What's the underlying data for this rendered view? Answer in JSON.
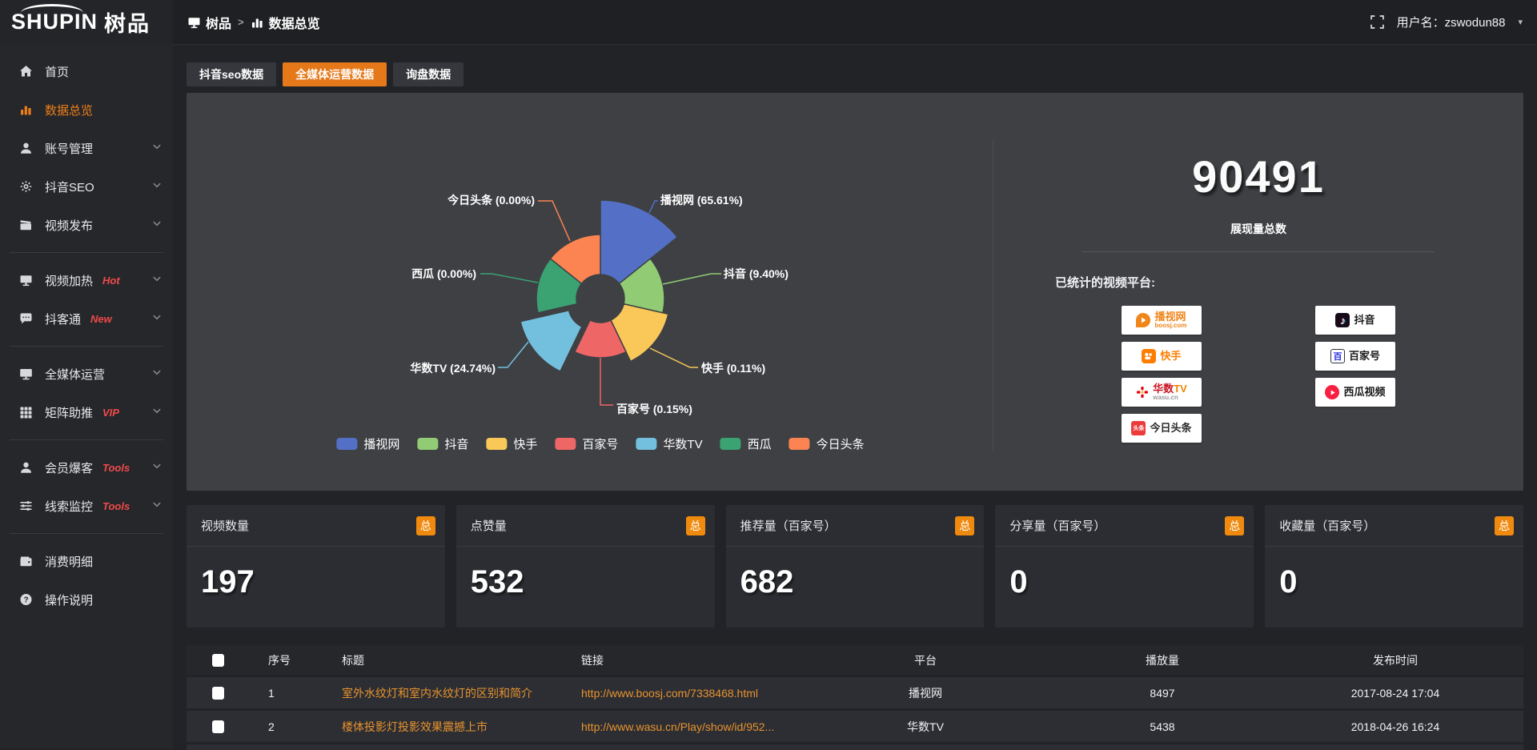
{
  "app": {
    "logo_en": "SHUPIN",
    "logo_cn": "树品"
  },
  "topbar": {
    "breadcrumb": [
      {
        "label": "树品",
        "icon": "screen-icon"
      },
      {
        "label": "数据总览",
        "icon": "bar-chart-icon"
      }
    ],
    "separator": ">",
    "username_label": "用户名：",
    "username": "zswodun88"
  },
  "sidebar": {
    "groups": [
      {
        "items": [
          {
            "icon": "home-icon",
            "label": "首页"
          },
          {
            "icon": "bar-chart-icon",
            "label": "数据总览",
            "active": true
          },
          {
            "icon": "user-icon",
            "label": "账号管理",
            "chevron": true
          },
          {
            "icon": "gear-icon",
            "label": "抖音SEO",
            "chevron": true
          },
          {
            "icon": "clapper-icon",
            "label": "视频发布",
            "chevron": true
          }
        ]
      },
      {
        "items": [
          {
            "icon": "screen-icon",
            "label": "视频加热",
            "badge": "Hot",
            "chevron": true
          },
          {
            "icon": "chat-icon",
            "label": "抖客通",
            "badge": "New",
            "chevron": true
          }
        ]
      },
      {
        "items": [
          {
            "icon": "monitor-icon",
            "label": "全媒体运营",
            "chevron": true
          },
          {
            "icon": "grid-icon",
            "label": "矩阵助推",
            "badge": "VIP",
            "chevron": true
          }
        ]
      },
      {
        "items": [
          {
            "icon": "user-icon",
            "label": "会员爆客",
            "badge": "Tools",
            "chevron": true
          },
          {
            "icon": "sliders-icon",
            "label": "线索监控",
            "badge": "Tools",
            "chevron": true
          }
        ]
      },
      {
        "items": [
          {
            "icon": "wallet-icon",
            "label": "消费明细"
          },
          {
            "icon": "question-icon",
            "label": "操作说明"
          }
        ]
      }
    ]
  },
  "tabs": [
    {
      "label": "抖音seo数据",
      "active": false
    },
    {
      "label": "全媒体运营数据",
      "active": true
    },
    {
      "label": "询盘数据",
      "active": false
    }
  ],
  "chart_data": {
    "type": "pie",
    "subtype": "nightingale-rose",
    "label_format": "{name} ({percent}%)",
    "legend_position": "bottom",
    "items": [
      {
        "name": "播视网",
        "percent": 65.61,
        "color": "#5470c6"
      },
      {
        "name": "抖音",
        "percent": 9.4,
        "color": "#91cc75"
      },
      {
        "name": "快手",
        "percent": 0.11,
        "color": "#fac858"
      },
      {
        "name": "百家号",
        "percent": 0.15,
        "color": "#ee6666"
      },
      {
        "name": "华数TV",
        "percent": 24.74,
        "color": "#73c0de"
      },
      {
        "name": "西瓜",
        "percent": 0.0,
        "color": "#3ba272"
      },
      {
        "name": "今日头条",
        "percent": 0.0,
        "color": "#fc8452"
      }
    ],
    "display": {
      "radii": [
        123,
        80,
        87,
        74,
        92,
        80,
        80
      ],
      "inner_radius": 30,
      "offset_slice_index": 4
    }
  },
  "summary": {
    "total_value": "90491",
    "total_label": "展现量总数",
    "platforms_label": "已统计的视频平台:",
    "platform_columns": [
      [
        {
          "name": "播视网",
          "sub": "boosj.com",
          "icon": "boosj-logo-icon",
          "name_color": "#f08519"
        },
        {
          "name": "快手",
          "icon": "kuaishou-logo-icon",
          "name_color": "#ff7e00"
        },
        {
          "name": "华数TV",
          "sub": "wasu.cn",
          "icon": "wasu-logo-icon",
          "name_color": "special-wasu"
        },
        {
          "name": "今日头条",
          "icon": "toutiao-logo-icon",
          "name_color": "#2b2b2b"
        }
      ],
      [
        {
          "name": "抖音",
          "icon": "douyin-logo-icon",
          "name_color": "#1a1a1a"
        },
        {
          "name": "百家号",
          "icon": "baijiahao-logo-icon",
          "name_color": "#1a1a1a"
        },
        {
          "name": "西瓜视频",
          "icon": "xigua-logo-icon",
          "name_color": "#1a1a1a"
        }
      ]
    ]
  },
  "stat_cards": [
    {
      "label": "视频数量",
      "badge": "总",
      "value": "197"
    },
    {
      "label": "点赞量",
      "badge": "总",
      "value": "532"
    },
    {
      "label": "推荐量（百家号）",
      "badge": "总",
      "value": "682"
    },
    {
      "label": "分享量（百家号）",
      "badge": "总",
      "value": "0"
    },
    {
      "label": "收藏量（百家号）",
      "badge": "总",
      "value": "0"
    }
  ],
  "table": {
    "headers": [
      "序号",
      "标题",
      "链接",
      "平台",
      "播放量",
      "发布时间"
    ],
    "rows": [
      {
        "idx": "1",
        "title": "室外水纹灯和室内水纹灯的区别和简介",
        "link": "http://www.boosj.com/7338468.html",
        "platform": "播视网",
        "views": "8497",
        "date": "2017-08-24 17:04"
      },
      {
        "idx": "2",
        "title": "楼体投影灯投影效果震撼上市",
        "link": "http://www.wasu.cn/Play/show/id/952...",
        "platform": "华数TV",
        "views": "5438",
        "date": "2018-04-26 16:24"
      }
    ]
  }
}
